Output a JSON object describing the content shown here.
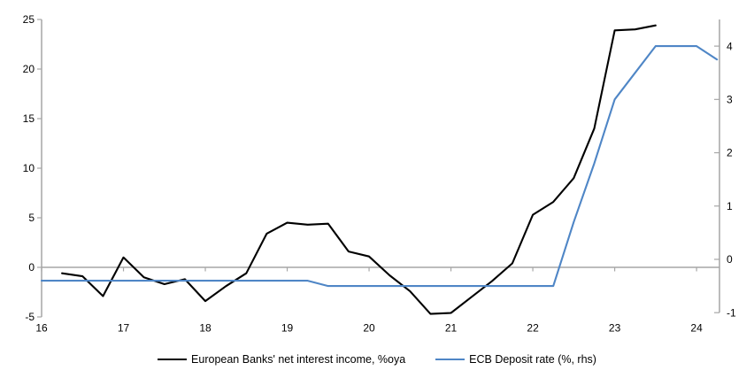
{
  "chart_data": {
    "type": "line",
    "title": "",
    "x_axis": {
      "tick_labels": [
        "16",
        "17",
        "18",
        "19",
        "20",
        "21",
        "22",
        "23",
        "24"
      ],
      "ticks": [
        16,
        17,
        18,
        19,
        20,
        21,
        22,
        23,
        24
      ],
      "range": [
        16,
        24.28
      ]
    },
    "left_axis": {
      "tick_labels": [
        "-5",
        "0",
        "5",
        "10",
        "15",
        "20",
        "25"
      ],
      "ticks": [
        -5,
        0,
        5,
        10,
        15,
        20,
        25
      ],
      "range": [
        -5,
        25
      ]
    },
    "right_axis": {
      "tick_labels": [
        "-1",
        "0",
        "1",
        "2",
        "3",
        "4"
      ],
      "ticks": [
        -1,
        0,
        1,
        2,
        3,
        4
      ],
      "range": [
        -1.08,
        4.5
      ]
    },
    "grid": "zero-line-only",
    "legend_position": "bottom",
    "colors": {
      "axis": "#a6a6a6",
      "zero_line": "#a6a6a6",
      "nii_series": "#000000",
      "deposit_rate_series": "#4f86c6"
    },
    "series": [
      {
        "name": "European Banks' net interest income, %oya",
        "axis": "left",
        "color": "#000000",
        "points": [
          [
            16.25,
            -0.6
          ],
          [
            16.5,
            -0.9
          ],
          [
            16.75,
            -2.9
          ],
          [
            17.0,
            1.0
          ],
          [
            17.25,
            -1.0
          ],
          [
            17.5,
            -1.7
          ],
          [
            17.75,
            -1.2
          ],
          [
            18.0,
            -3.4
          ],
          [
            18.25,
            -1.9
          ],
          [
            18.5,
            -0.6
          ],
          [
            18.75,
            3.4
          ],
          [
            19.0,
            4.5
          ],
          [
            19.25,
            4.3
          ],
          [
            19.5,
            4.4
          ],
          [
            19.75,
            1.6
          ],
          [
            20.0,
            1.1
          ],
          [
            20.25,
            -0.8
          ],
          [
            20.5,
            -2.4
          ],
          [
            20.75,
            -4.7
          ],
          [
            21.0,
            -4.6
          ],
          [
            21.25,
            -3.0
          ],
          [
            21.5,
            -1.4
          ],
          [
            21.75,
            0.4
          ],
          [
            22.0,
            5.3
          ],
          [
            22.25,
            6.6
          ],
          [
            22.5,
            9.0
          ],
          [
            22.75,
            14.0
          ],
          [
            23.0,
            23.9
          ],
          [
            23.25,
            24.0
          ],
          [
            23.5,
            24.4
          ]
        ]
      },
      {
        "name": "ECB Deposit rate (%, rhs)",
        "axis": "right",
        "color": "#4f86c6",
        "points": [
          [
            16.0,
            -0.4
          ],
          [
            16.25,
            -0.4
          ],
          [
            16.5,
            -0.4
          ],
          [
            16.75,
            -0.4
          ],
          [
            17.0,
            -0.4
          ],
          [
            17.25,
            -0.4
          ],
          [
            17.5,
            -0.4
          ],
          [
            17.75,
            -0.4
          ],
          [
            18.0,
            -0.4
          ],
          [
            18.25,
            -0.4
          ],
          [
            18.5,
            -0.4
          ],
          [
            18.75,
            -0.4
          ],
          [
            19.0,
            -0.4
          ],
          [
            19.25,
            -0.4
          ],
          [
            19.5,
            -0.5
          ],
          [
            19.75,
            -0.5
          ],
          [
            20.0,
            -0.5
          ],
          [
            20.25,
            -0.5
          ],
          [
            20.5,
            -0.5
          ],
          [
            20.75,
            -0.5
          ],
          [
            21.0,
            -0.5
          ],
          [
            21.25,
            -0.5
          ],
          [
            21.5,
            -0.5
          ],
          [
            21.75,
            -0.5
          ],
          [
            22.0,
            -0.5
          ],
          [
            22.25,
            -0.5
          ],
          [
            22.5,
            0.7
          ],
          [
            22.75,
            1.8
          ],
          [
            23.0,
            3.0
          ],
          [
            23.25,
            3.5
          ],
          [
            23.5,
            4.0
          ],
          [
            23.75,
            4.0
          ],
          [
            24.0,
            4.0
          ],
          [
            24.25,
            3.75
          ]
        ]
      }
    ]
  },
  "legend": {
    "items": [
      {
        "label": "European Banks' net interest income, %oya"
      },
      {
        "label": "ECB Deposit rate (%, rhs)"
      }
    ]
  }
}
